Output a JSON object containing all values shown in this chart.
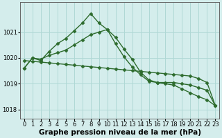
{
  "line1_x": [
    0,
    1,
    2,
    3,
    4,
    5,
    6,
    7,
    8,
    9,
    10,
    11,
    12,
    13,
    14,
    15,
    16,
    17,
    18,
    19,
    20,
    21,
    22,
    23
  ],
  "line1_y": [
    1019.6,
    1020.0,
    1019.9,
    1020.25,
    1020.55,
    1020.75,
    1021.05,
    1021.35,
    1021.72,
    1021.35,
    1021.1,
    1020.55,
    1020.05,
    1019.65,
    1019.35,
    1019.1,
    1019.05,
    1019.0,
    1018.95,
    1018.8,
    1018.65,
    1018.5,
    1018.38,
    1018.15
  ],
  "line2_x": [
    0,
    1,
    2,
    3,
    4,
    5,
    6,
    7,
    8,
    9,
    10,
    11,
    12,
    13,
    14,
    15,
    16,
    17,
    18,
    19,
    20,
    21,
    22,
    23
  ],
  "line2_y": [
    1019.6,
    1020.0,
    1019.95,
    1020.1,
    1020.2,
    1020.3,
    1020.5,
    1020.7,
    1020.9,
    1021.0,
    1021.1,
    1020.8,
    1020.35,
    1019.95,
    1019.45,
    1019.15,
    1019.05,
    1019.05,
    1019.05,
    1019.0,
    1018.95,
    1018.85,
    1018.75,
    1018.15
  ],
  "line3_x": [
    0,
    1,
    2,
    3,
    4,
    5,
    6,
    7,
    8,
    9,
    10,
    11,
    12,
    13,
    14,
    15,
    16,
    17,
    18,
    19,
    20,
    21,
    22,
    23
  ],
  "line3_y": [
    1019.9,
    1019.87,
    1019.84,
    1019.81,
    1019.78,
    1019.75,
    1019.72,
    1019.69,
    1019.66,
    1019.63,
    1019.6,
    1019.57,
    1019.54,
    1019.51,
    1019.48,
    1019.45,
    1019.42,
    1019.39,
    1019.36,
    1019.33,
    1019.3,
    1019.2,
    1019.05,
    1018.15
  ],
  "bg_color": "#d4edec",
  "grid_color": "#afd8d5",
  "line_color": "#2d6b2d",
  "marker": "D",
  "markersize": 2.5,
  "linewidth": 1.0,
  "xlabel": "Graphe pression niveau de la mer (hPa)",
  "xlabel_fontsize": 7.5,
  "yticks": [
    1018,
    1019,
    1020,
    1021
  ],
  "xticks": [
    0,
    1,
    2,
    3,
    4,
    5,
    6,
    7,
    8,
    9,
    10,
    11,
    12,
    13,
    14,
    15,
    16,
    17,
    18,
    19,
    20,
    21,
    22,
    23
  ],
  "xlim": [
    -0.5,
    23.5
  ],
  "ylim": [
    1017.65,
    1022.15
  ],
  "tick_fontsize": 6.0
}
